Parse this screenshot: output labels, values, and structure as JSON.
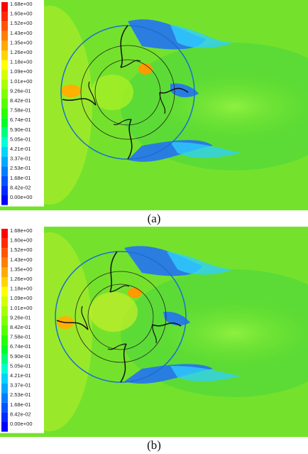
{
  "legend": {
    "levels": [
      "1.68e+00",
      "1.60e+00",
      "1.52e+00",
      "1.43e+00",
      "1.35e+00",
      "1.26e+00",
      "1.18e+00",
      "1.09e+00",
      "1.01e+00",
      "9.26e-01",
      "8.42e-01",
      "7.58e-01",
      "6.74e-01",
      "5.90e-01",
      "5.05e-01",
      "4.21e-01",
      "3.37e-01",
      "2.53e-01",
      "1.68e-01",
      "8.42e-02",
      "0.00e+00"
    ],
    "colors": [
      "#ff0000",
      "#ff2a00",
      "#ff5500",
      "#ff7f00",
      "#ffaa00",
      "#ffd400",
      "#ffff00",
      "#d4ff00",
      "#aaff00",
      "#7fff00",
      "#55ff00",
      "#2aff00",
      "#00ff2a",
      "#00ff7f",
      "#00ffd4",
      "#00d4ff",
      "#00aaff",
      "#007fff",
      "#0055ff",
      "#002aff",
      "#0000ff"
    ]
  },
  "panels": [
    {
      "caption": "(a)"
    },
    {
      "caption": "(b)"
    }
  ]
}
